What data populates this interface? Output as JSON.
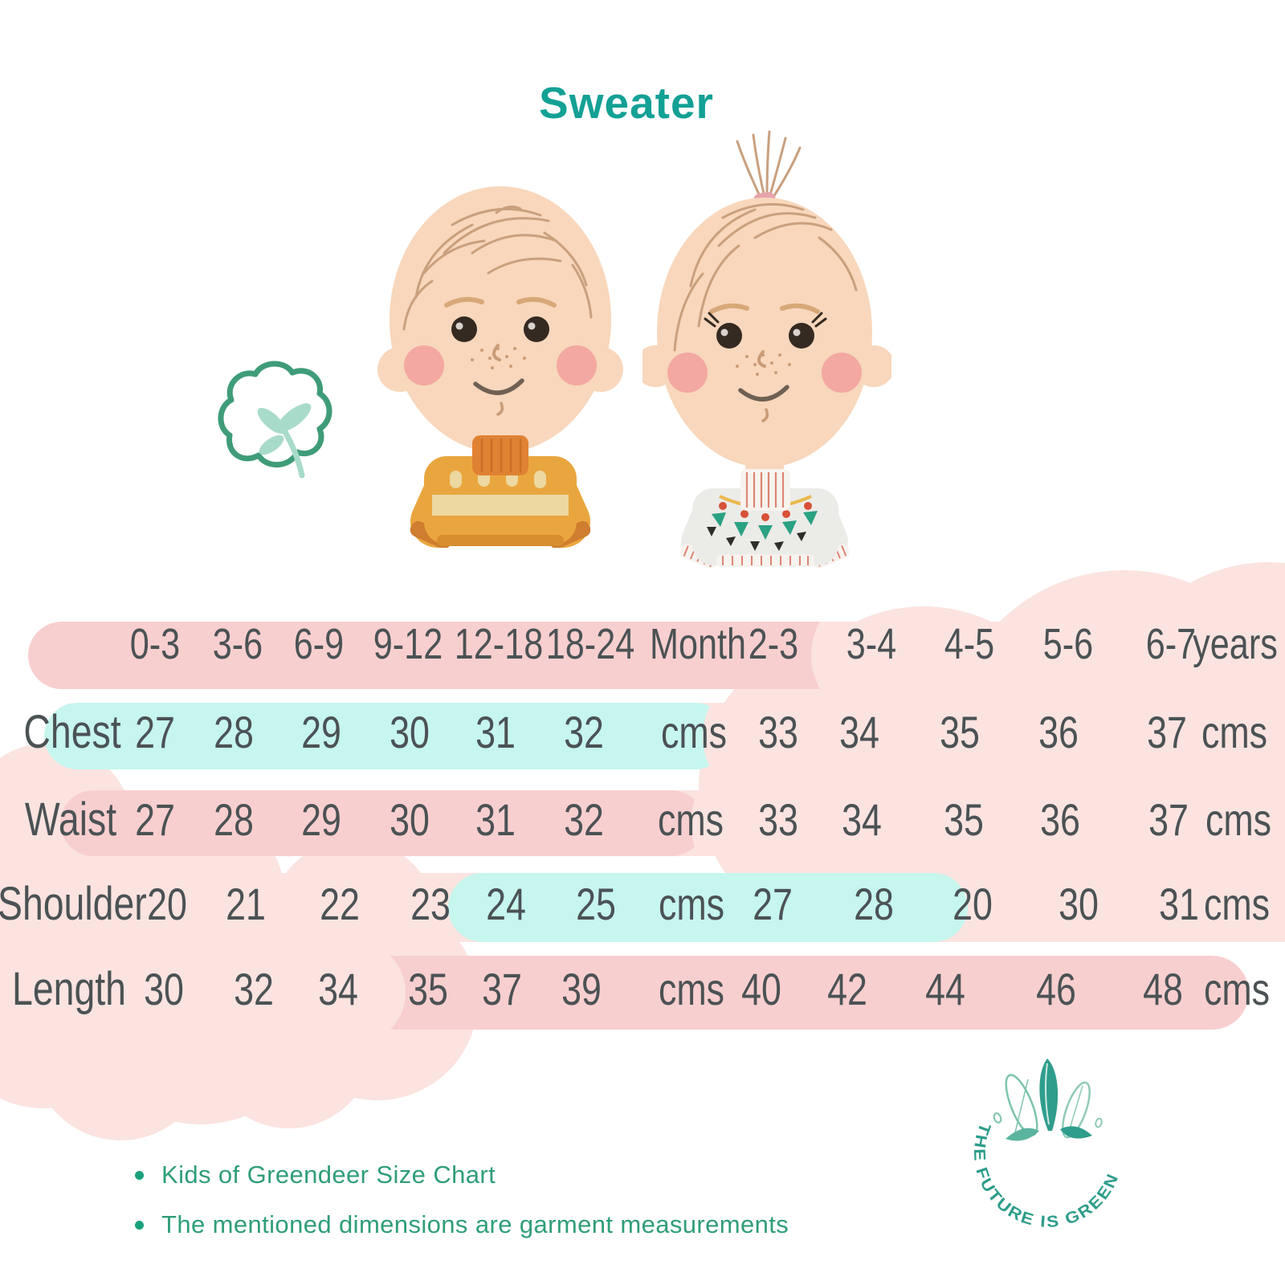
{
  "title": "Sweater",
  "table": {
    "header": {
      "cells": [
        "0-3",
        "3-6",
        "6-9",
        "9-12",
        "12-18",
        "18-24",
        "Month",
        "2-3",
        "3-4",
        "4-5",
        "5-6",
        "6-7",
        "years"
      ]
    },
    "rows": [
      {
        "label": "Chest",
        "cells": [
          "27",
          "28",
          "29",
          "30",
          "31",
          "32",
          "cms",
          "33",
          "34",
          "35",
          "36",
          "37",
          "cms"
        ]
      },
      {
        "label": "Waist",
        "cells": [
          "27",
          "28",
          "29",
          "30",
          "31",
          "32",
          "cms",
          "33",
          "34",
          "35",
          "36",
          "37",
          "cms"
        ]
      },
      {
        "label": "Shoulder",
        "cells": [
          "20",
          "21",
          "22",
          "23",
          "24",
          "25",
          "cms",
          "27",
          "28",
          "20",
          "30",
          "31",
          "cms"
        ]
      },
      {
        "label": "Length",
        "cells": [
          "30",
          "32",
          "34",
          "35",
          "37",
          "39",
          "cms",
          "40",
          "42",
          "44",
          "46",
          "48",
          "cms"
        ]
      }
    ]
  },
  "footer": {
    "bullets": [
      "Kids of Greendeer Size Chart",
      "The mentioned dimensions are garment measurements"
    ]
  },
  "logo": {
    "text": "THE FUTURE IS GREEN"
  },
  "illustrations": {
    "boy": "baby-boy-in-yellow-sweater",
    "girl": "baby-girl-in-white-patterned-sweater",
    "cotton": "cotton-flower-doodle"
  },
  "colors": {
    "title_teal": "#13a095",
    "footer_green": "#2f9e78",
    "band_pink": "#f8cfcf",
    "cloud_pink": "#fbe3e0",
    "band_mint": "#c6f6ee",
    "table_text": "#4b5254",
    "logo_teal": "#2e9d8a",
    "boy_sweater": "#eaa63e",
    "girl_sweater": "#ebebe8"
  },
  "chart_data": {
    "type": "table",
    "title": "Sweater size chart",
    "age_columns_months": [
      "0-3",
      "3-6",
      "6-9",
      "9-12",
      "12-18",
      "18-24"
    ],
    "age_columns_years": [
      "2-3",
      "3-4",
      "4-5",
      "5-6",
      "6-7"
    ],
    "unit": "cms",
    "rows": [
      {
        "measurement": "Chest",
        "month_values": [
          27,
          28,
          29,
          30,
          31,
          32
        ],
        "year_values": [
          33,
          34,
          35,
          36,
          37
        ]
      },
      {
        "measurement": "Waist",
        "month_values": [
          27,
          28,
          29,
          30,
          31,
          32
        ],
        "year_values": [
          33,
          34,
          35,
          36,
          37
        ]
      },
      {
        "measurement": "Shoulder",
        "month_values": [
          20,
          21,
          22,
          23,
          24,
          25
        ],
        "year_values": [
          27,
          28,
          20,
          30,
          31
        ]
      },
      {
        "measurement": "Length",
        "month_values": [
          30,
          32,
          34,
          35,
          37,
          39
        ],
        "year_values": [
          40,
          42,
          44,
          46,
          48
        ]
      }
    ],
    "notes": [
      "Kids of Greendeer Size Chart",
      "The mentioned dimensions are garment measurements"
    ]
  }
}
